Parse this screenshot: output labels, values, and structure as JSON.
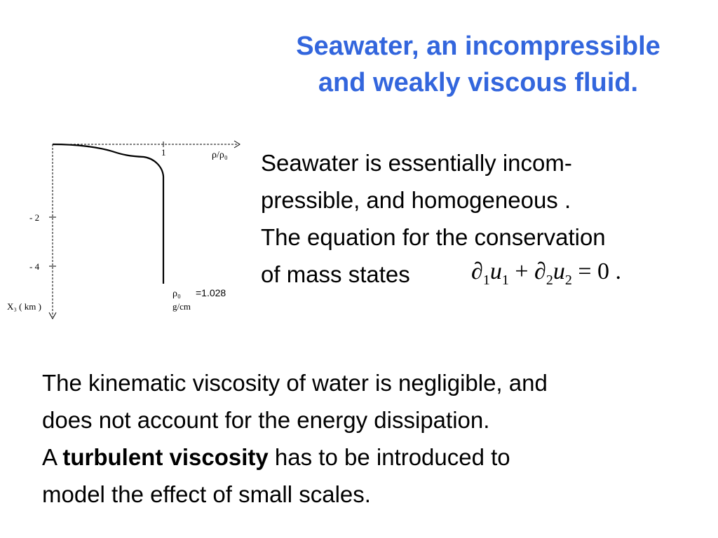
{
  "title": {
    "line1": "Seawater, an incompressible",
    "line2": "and weakly viscous fluid.",
    "color": "#3366dd"
  },
  "intro": {
    "line1": "Seawater is essentially incom-",
    "line2": "pressible, and homogeneous .",
    "line3": "The equation for the conservation",
    "line4": "of mass states"
  },
  "equation": {
    "d1": "∂",
    "sub1": "1",
    "u1": "u",
    "sub1b": "1",
    "plus": " + ",
    "d2": "∂",
    "sub2": "2",
    "u2": "u",
    "sub2b": "2",
    "equals": " = 0 ."
  },
  "diagram": {
    "x_axis_label": "ρ/ρ₀",
    "x_tick_label": "1",
    "y_axis_label": "X₃ ( km )",
    "y_tick_minus2": "- 2",
    "y_tick_minus4": "- 4",
    "rho0_label": "ρ₀",
    "rho0_value": "=1.028",
    "rho0_unit": "g/cm"
  },
  "body": {
    "line1": "The kinematic viscosity of water is negligible, and",
    "line2": "does not account for the energy dissipation.",
    "line3_prefix": "A ",
    "line3_bold": "turbulent viscosity",
    "line3_suffix": " has to be introduced to",
    "line4": "model the effect of small scales."
  }
}
